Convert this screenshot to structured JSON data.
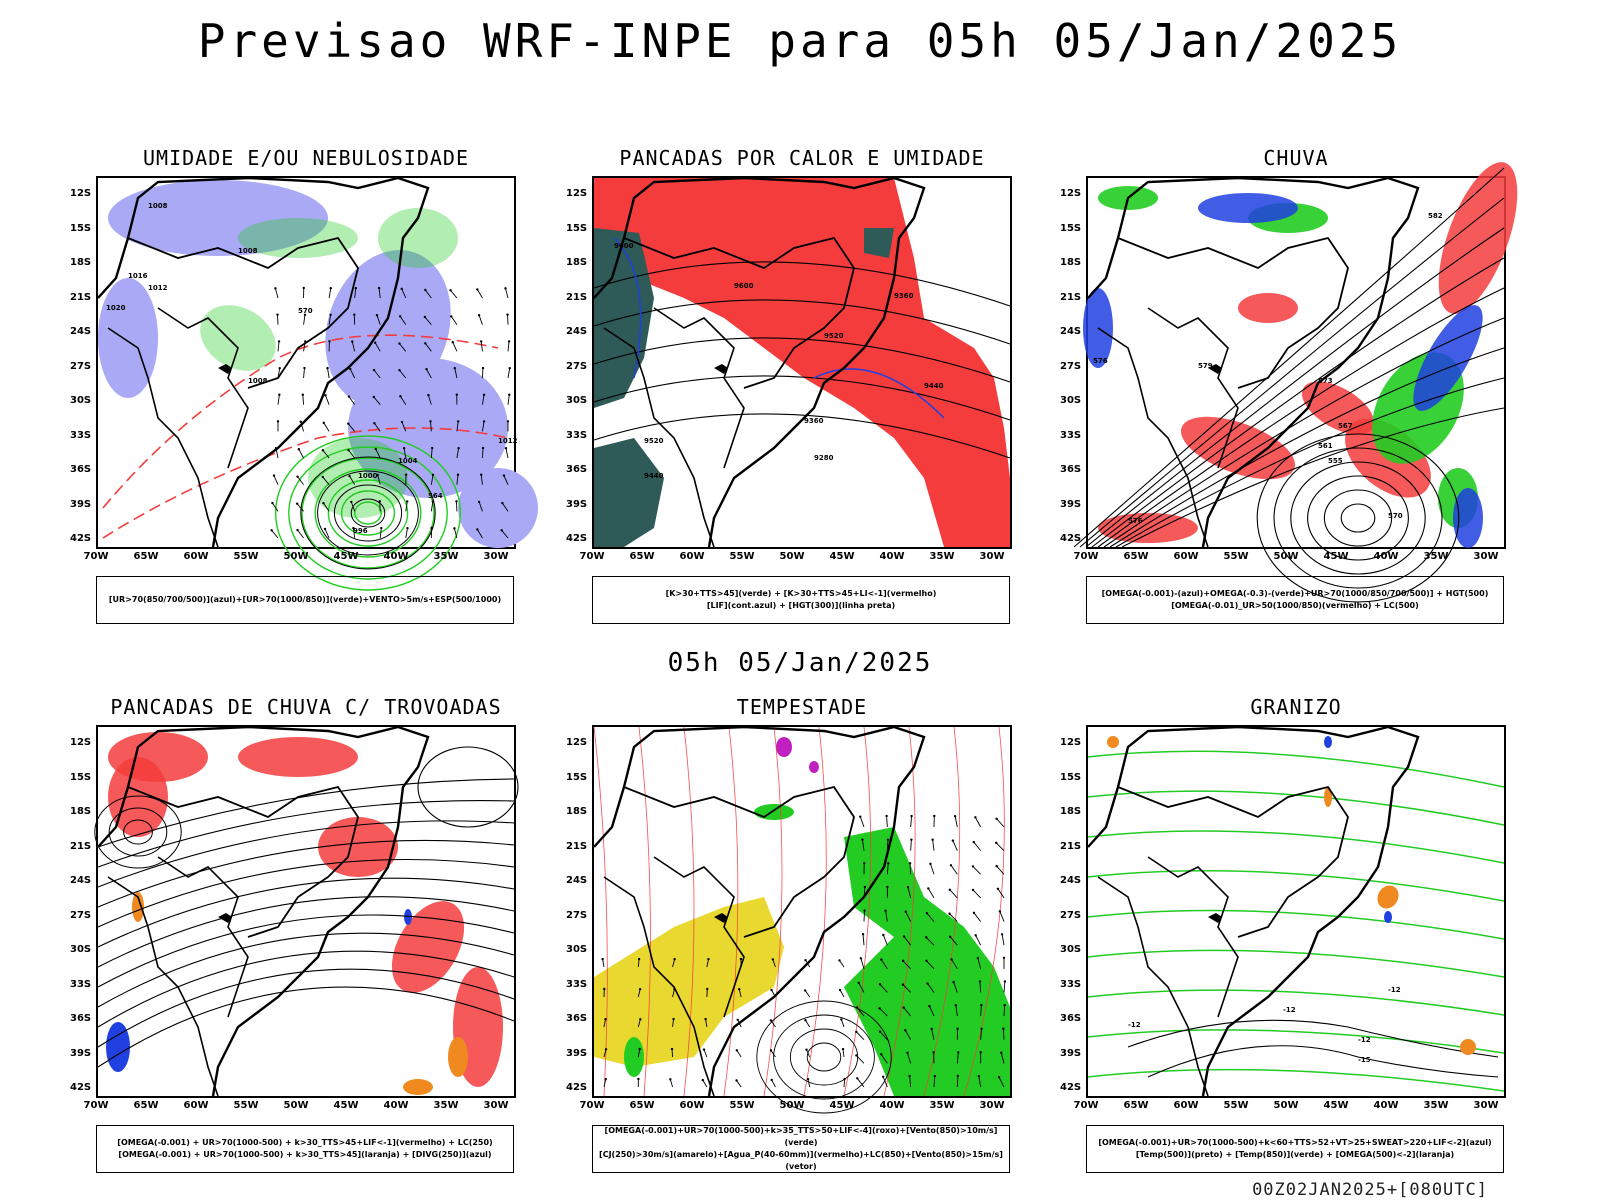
{
  "title": "Previsao WRF-INPE  para 05h 05/Jan/2025",
  "mid_title": "05h 05/Jan/2025",
  "footer": "00Z02JAN2025+[080UTC]",
  "lat_ticks": [
    "12S",
    "15S",
    "18S",
    "21S",
    "24S",
    "27S",
    "30S",
    "33S",
    "36S",
    "39S",
    "42S"
  ],
  "lon_ticks": [
    "70W",
    "65W",
    "60W",
    "55W",
    "50W",
    "45W",
    "40W",
    "35W",
    "30W"
  ],
  "colors": {
    "blue_fill": "#a9a9f5",
    "green": "#22cc22",
    "red": "#f43c3c",
    "dark_teal": "#2e5a58",
    "yellow": "#e8d830",
    "orange": "#f08a20",
    "blue": "#2040e0",
    "magenta": "#c020c0"
  },
  "panels": [
    {
      "title": "UMIDADE E/OU NEBULOSIDADE",
      "legend": [
        "[UR>70(850/700/500)](azul)+[UR>70(1000/850)](verde)+VENTO>5m/s+ESP(500/1000)"
      ],
      "labels": [
        "1008",
        "1008",
        "1016",
        "1012",
        "1020",
        "1008",
        "1004",
        "1000",
        "996",
        "1012",
        "570",
        "564"
      ]
    },
    {
      "title": "PANCADAS POR CALOR E UMIDADE",
      "legend": [
        "[K>30+TTS>45](verde) + [K>30+TTS>45+LI<-1](vermelho)",
        "[LIF](cont.azul) + [HGT(300)](linha preta)"
      ],
      "labels": [
        "9600",
        "9600",
        "9520",
        "9440",
        "9360",
        "9280",
        "9520",
        "9440",
        "9360"
      ]
    },
    {
      "title": "CHUVA",
      "legend": [
        "[OMEGA(-0.001)-(azul)+OMEGA(-0.3)-(verde)+UR>70(1000/850/700/500)] + HGT(500)",
        "[OMEGA(-0.01)_UR>50(1000/850)(vermelho) + LC(500)"
      ],
      "labels": [
        "582",
        "576",
        "579",
        "573",
        "567",
        "561",
        "555",
        "570",
        "576"
      ]
    },
    {
      "title": "PANCADAS DE CHUVA C/ TROVOADAS",
      "legend": [
        "[OMEGA(-0.001) + UR>70(1000-500) + k>30_TTS>45+LIF<-1](vermelho) + LC(250)",
        "[OMEGA(-0.001) + UR>70(1000-500) + k>30_TTS>45](laranja) + [DIVG(250)](azul)"
      ],
      "labels": []
    },
    {
      "title": "TEMPESTADE",
      "legend": [
        "[OMEGA(-0.001)+UR>70(1000-500)+k>35_TTS>50+LIF<-4](roxo)+[Vento(850)>10m/s](verde)",
        "[CJ(250)>30m/s](amarelo)+[Agua_P(40-60mm)](vermelho)+LC(850)+[Vento(850)>15m/s](vetor)"
      ],
      "labels": []
    },
    {
      "title": "GRANIZO",
      "legend": [
        "[OMEGA(-0.001)+UR>70(1000-500)+k<60+TTS>52+VT>25+SWEAT>220+LIF<-2](azul)",
        "[Temp(500)](preto) + [Temp(850)](verde) + [OMEGA(500)<-2](laranja)"
      ],
      "labels": [
        "-12",
        "-12",
        "-12",
        "-12",
        "-15"
      ]
    }
  ]
}
